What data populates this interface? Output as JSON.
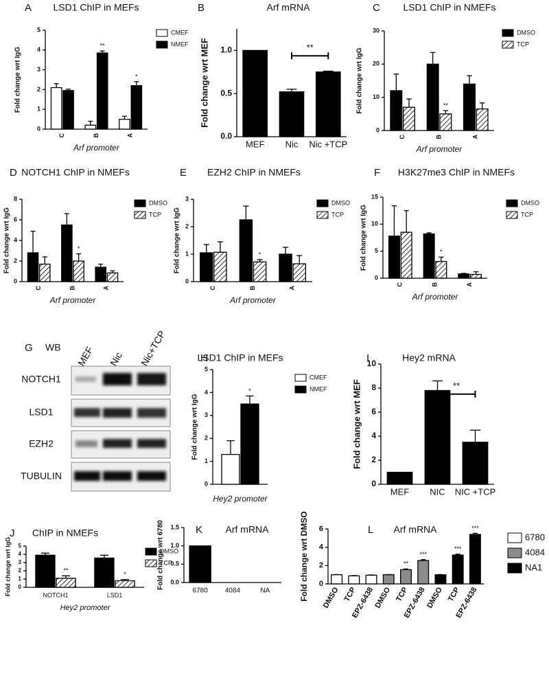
{
  "chart_data": [
    {
      "type": "bar",
      "panel": "A",
      "title": "LSD1 ChIP in MEFs",
      "x_label": "Arf promoter",
      "y_label": "Fold change wrt IgG",
      "categories": [
        "C",
        "B",
        "A"
      ],
      "series": [
        {
          "name": "CMEF",
          "color": "#ffffff",
          "values": [
            2.1,
            0.2,
            0.5
          ],
          "errors": [
            0.2,
            0.2,
            0.15
          ],
          "significance": [
            null,
            null,
            null
          ]
        },
        {
          "name": "NMEF",
          "color": "#000000",
          "values": [
            1.95,
            3.85,
            2.2
          ],
          "errors": [
            0.07,
            0.1,
            0.2
          ],
          "significance": [
            null,
            "**",
            "*"
          ]
        }
      ],
      "ylim": [
        0,
        5
      ],
      "yticks": [
        0,
        1,
        2,
        3,
        4,
        5
      ]
    },
    {
      "type": "bar",
      "panel": "B",
      "title": "Arf mRNA",
      "y_label": "Fold change wrt MEF",
      "categories": [
        "MEF",
        "Nic",
        "Nic +TCP"
      ],
      "series": [
        {
          "color": "#000000",
          "values": [
            1.0,
            0.52,
            0.75
          ],
          "errors": [
            null,
            0.03,
            0.01
          ]
        }
      ],
      "comparison": {
        "text": "**",
        "between": [
          "Nic",
          "Nic +TCP"
        ]
      },
      "ylim": [
        0,
        1.25
      ],
      "yticks": [
        {
          "value": 0,
          "label": "0.0"
        },
        {
          "value": 0.5,
          "label": "0.5"
        },
        {
          "value": 1,
          "label": "1.0"
        }
      ]
    },
    {
      "type": "bar",
      "panel": "C",
      "title": "LSD1 ChIP in NMEFs",
      "x_label": "Arf promoter",
      "y_label": "Fold change wrt IgG",
      "categories": [
        "C",
        "B",
        "A"
      ],
      "series": [
        {
          "name": "DMSO",
          "color": "#000000",
          "values": [
            12,
            20,
            14
          ],
          "errors": [
            5,
            3.5,
            2.5
          ],
          "significance": [
            null,
            null,
            null
          ]
        },
        {
          "name": "TCP",
          "color": "#ffffff",
          "hatch": true,
          "values": [
            7,
            5,
            6.5
          ],
          "errors": [
            2.5,
            1,
            1.8
          ],
          "significance": [
            null,
            "**",
            null
          ]
        }
      ],
      "ylim": [
        0,
        30
      ],
      "yticks": [
        0,
        10,
        20,
        30
      ]
    },
    {
      "type": "bar",
      "panel": "D",
      "title": "NOTCH1 ChIP in NMEFs",
      "x_label": "Arf promoter",
      "y_label": "Fold change wrt IgG",
      "categories": [
        "C",
        "B",
        "A"
      ],
      "series": [
        {
          "name": "DMSO",
          "color": "#000000",
          "values": [
            2.8,
            5.5,
            1.4
          ],
          "errors": [
            2.1,
            1.1,
            0.3
          ],
          "significance": [
            null,
            null,
            null
          ]
        },
        {
          "name": "TCP",
          "color": "#ffffff",
          "hatch": true,
          "values": [
            1.7,
            2.0,
            0.85
          ],
          "errors": [
            0.7,
            0.7,
            0.2
          ],
          "significance": [
            null,
            "*",
            null
          ]
        }
      ],
      "ylim": [
        0,
        8
      ],
      "yticks": [
        0,
        2,
        4,
        6,
        8
      ]
    },
    {
      "type": "bar",
      "panel": "E",
      "title": "EZH2 ChIP in NMEFs",
      "x_label": "Arf promoter",
      "y_label": "Fold change wrt IgG",
      "categories": [
        "C",
        "B",
        "A"
      ],
      "series": [
        {
          "name": "DMSO",
          "color": "#000000",
          "values": [
            1.05,
            2.25,
            1.0
          ],
          "errors": [
            0.3,
            0.5,
            0.25
          ],
          "significance": [
            null,
            null,
            null
          ]
        },
        {
          "name": "TCP",
          "color": "#ffffff",
          "hatch": true,
          "values": [
            1.07,
            0.72,
            0.65
          ],
          "errors": [
            0.38,
            0.08,
            0.3
          ],
          "significance": [
            null,
            "*",
            null
          ]
        }
      ],
      "ylim": [
        0,
        3
      ],
      "yticks": [
        0,
        1,
        2,
        3
      ]
    },
    {
      "type": "bar",
      "panel": "F",
      "title": "H3K27me3 ChIP in NMEFs",
      "x_label": "Arf promoter",
      "y_label": "Fold change wrt IgG",
      "categories": [
        "C",
        "B",
        "A"
      ],
      "series": [
        {
          "name": "DMSO",
          "color": "#000000",
          "values": [
            7.8,
            8.2,
            0.8
          ],
          "errors": [
            5.6,
            0.2,
            0.1
          ],
          "significance": [
            null,
            null,
            null
          ]
        },
        {
          "name": "TCP",
          "color": "#ffffff",
          "hatch": true,
          "values": [
            8.5,
            3.1,
            0.7
          ],
          "errors": [
            4,
            0.8,
            0.5
          ],
          "significance": [
            null,
            "*",
            null
          ]
        }
      ],
      "ylim": [
        0,
        15
      ],
      "yticks": [
        0,
        5,
        10,
        15
      ]
    },
    {
      "type": "bar",
      "panel": "H",
      "title": "LSD1 ChIP in MEFs",
      "x_label": "Hey2 promoter",
      "y_label": "Fold change wrt IgG",
      "categories": [
        null
      ],
      "series": [
        {
          "name": "CMEF",
          "color": "#ffffff",
          "values": [
            1.3
          ],
          "errors": [
            0.6
          ],
          "significance": [
            null
          ]
        },
        {
          "name": "NMEF",
          "color": "#000000",
          "values": [
            3.5
          ],
          "errors": [
            0.35
          ],
          "significance": [
            "*"
          ]
        }
      ],
      "ylim": [
        0,
        5
      ],
      "yticks": [
        0,
        1,
        2,
        3,
        4,
        5
      ]
    },
    {
      "type": "bar",
      "panel": "I",
      "title": "Hey2 mRNA",
      "y_label": "Fold change wrt MEF",
      "categories": [
        "MEF",
        "NIC",
        "NIC +TCP"
      ],
      "series": [
        {
          "color": "#000000",
          "values": [
            1.0,
            7.8,
            3.5
          ],
          "errors": [
            null,
            0.8,
            1.0
          ]
        }
      ],
      "comparison": {
        "text": "**",
        "between": [
          "NIC",
          "NIC +TCP"
        ]
      },
      "ylim": [
        0,
        10
      ],
      "yticks": [
        0,
        2,
        4,
        6,
        8,
        10
      ]
    },
    {
      "type": "bar",
      "panel": "J",
      "title": "ChIP in NMEFs",
      "x_label": "Hey2 promoter",
      "y_label": "Fold change wrt IgG",
      "categories": [
        "NOTCH1",
        "LSD1"
      ],
      "series": [
        {
          "name": "DMSO",
          "color": "#000000",
          "values": [
            3.9,
            3.55
          ],
          "errors": [
            0.25,
            0.35
          ],
          "significance": [
            null,
            null
          ]
        },
        {
          "name": "TCP",
          "color": "#ffffff",
          "hatch": true,
          "values": [
            1.1,
            0.8
          ],
          "errors": [
            0.3,
            0.15
          ],
          "significance": [
            "**",
            "*"
          ]
        }
      ],
      "ylim": [
        0,
        5
      ],
      "yticks": [
        0,
        1,
        2,
        3,
        4,
        5
      ]
    },
    {
      "type": "bar",
      "panel": "K",
      "title": "Arf mRNA",
      "y_label": "Fold change wrt 6780",
      "categories": [
        "6780",
        "4084",
        "NA"
      ],
      "series": [
        {
          "color": "#000000",
          "values": [
            1.0,
            0,
            0
          ]
        }
      ],
      "ylim": [
        0,
        1.5
      ],
      "yticks": [
        {
          "value": 0,
          "label": "0.0"
        },
        {
          "value": 0.5,
          "label": "0.5"
        },
        {
          "value": 1,
          "label": "1.0"
        },
        {
          "value": 1.5,
          "label": "1.5"
        }
      ]
    },
    {
      "type": "bar",
      "panel": "L",
      "title": "Arf mRNA",
      "y_label": "Fold change wrt DMSO",
      "categories": [
        "DMSO",
        "TCP",
        "EPZ-6438",
        "DMSO",
        "TCP",
        "EPZ-6438",
        "DMSO",
        "TCP",
        "EPZ-6438"
      ],
      "series": [
        {
          "name": "6780",
          "color": "#ffffff",
          "values": [
            1.0,
            0.88,
            0.95,
            null,
            null,
            null,
            null,
            null,
            null
          ],
          "errors": [
            0.02,
            0.03,
            0.03,
            null,
            null,
            null,
            null,
            null,
            null
          ],
          "significance": [
            null,
            null,
            null,
            null,
            null,
            null,
            null,
            null,
            null
          ]
        },
        {
          "name": "4084",
          "color": "#8c8c8c",
          "values": [
            null,
            null,
            null,
            1.0,
            1.55,
            2.55,
            null,
            null,
            null
          ],
          "errors": [
            null,
            null,
            null,
            0.02,
            0.08,
            0.1,
            null,
            null,
            null
          ],
          "significance": [
            null,
            null,
            null,
            null,
            "**",
            "***",
            null,
            null,
            null
          ]
        },
        {
          "name": "NA1",
          "color": "#000000",
          "values": [
            null,
            null,
            null,
            null,
            null,
            null,
            1.0,
            3.15,
            5.4
          ],
          "errors": [
            null,
            null,
            null,
            null,
            null,
            null,
            0.02,
            0.1,
            0.12
          ],
          "significance": [
            null,
            null,
            null,
            null,
            null,
            null,
            null,
            "***",
            "***"
          ]
        }
      ],
      "ylim": [
        0,
        6
      ],
      "yticks": [
        0,
        2,
        4,
        6
      ]
    }
  ],
  "western_blot": {
    "panel": "G",
    "label": "WB",
    "lanes": [
      "MEF",
      "Nic",
      "Nic+TCP"
    ],
    "rows": [
      "NOTCH1",
      "LSD1",
      "EZH2",
      "TUBULIN"
    ]
  }
}
